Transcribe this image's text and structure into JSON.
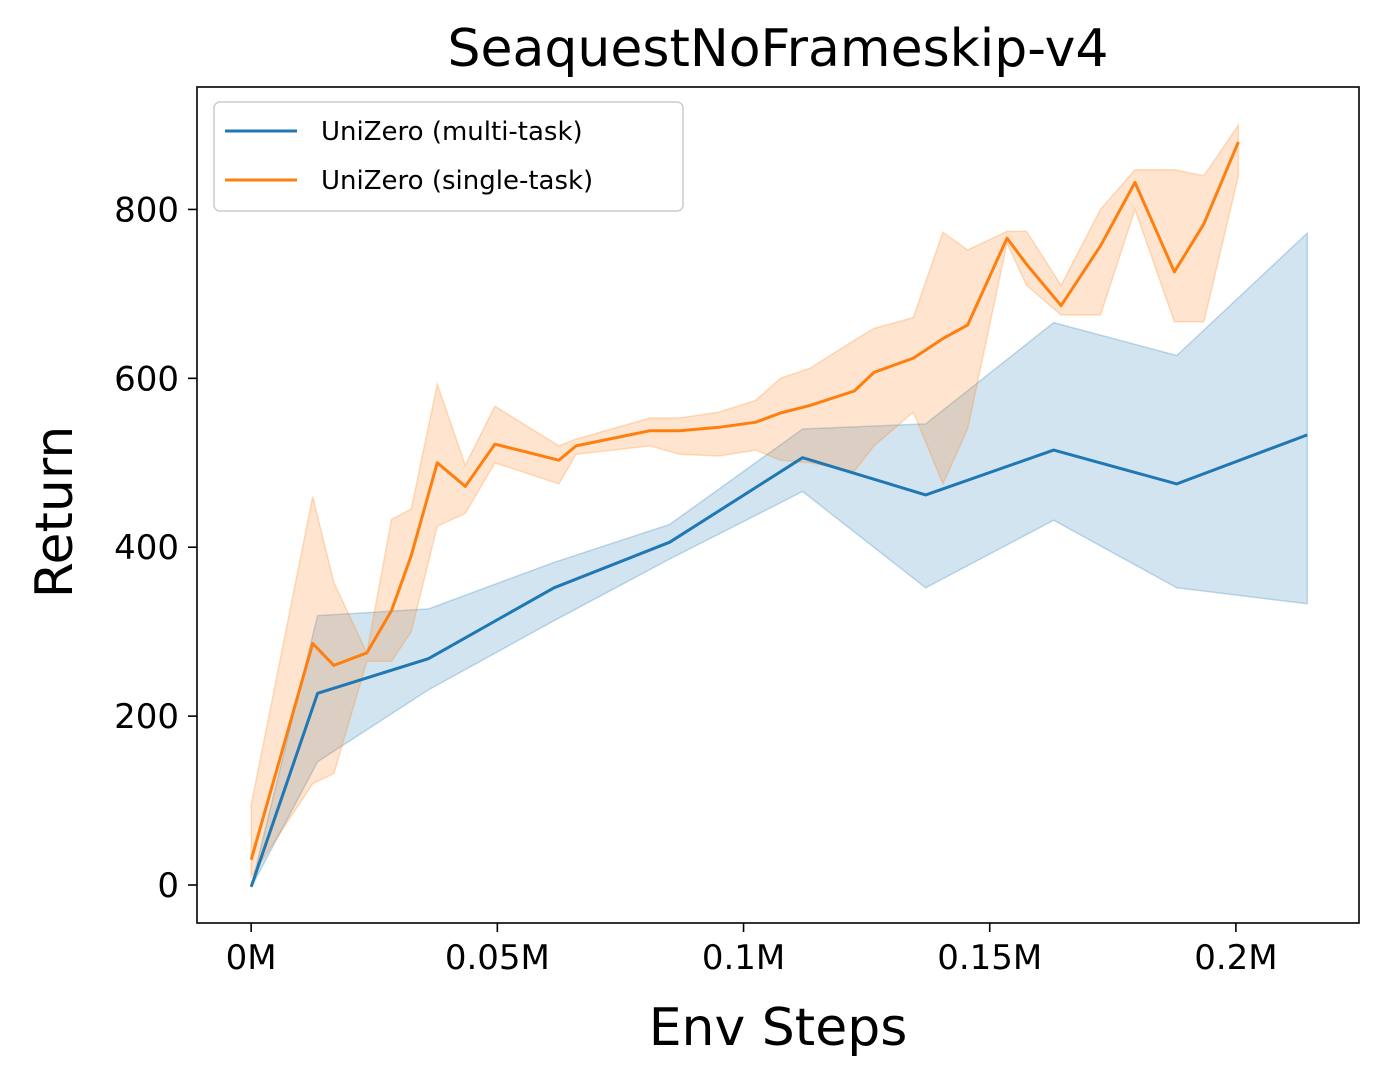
{
  "chart_data": {
    "type": "line",
    "title": "SeaquestNoFrameskip-v4",
    "xlabel": "Env Steps",
    "ylabel": "Return",
    "xlim": [
      -0.011,
      0.225
    ],
    "ylim": [
      -45,
      945
    ],
    "xticks": [
      0,
      0.05,
      0.1,
      0.15,
      0.2
    ],
    "xtick_labels": [
      "0M",
      "0.05M",
      "0.1M",
      "0.15M",
      "0.2M"
    ],
    "yticks": [
      0,
      200,
      400,
      600,
      800
    ],
    "ytick_labels": [
      "0",
      "200",
      "400",
      "600",
      "800"
    ],
    "grid": false,
    "legend_position": "upper-left",
    "series": [
      {
        "name": "UniZero (multi-task)",
        "color": "#1f77b4",
        "x": [
          0,
          0.0135,
          0.036,
          0.0615,
          0.085,
          0.112,
          0.137,
          0.163,
          0.188,
          0.2145
        ],
        "y": [
          -2,
          227,
          268,
          352,
          406,
          506,
          462,
          515,
          475,
          533
        ],
        "lower": [
          -3,
          146,
          231,
          313,
          386,
          466,
          352,
          432,
          352,
          333
        ],
        "upper": [
          -2,
          319,
          327,
          382,
          427,
          540,
          546,
          666,
          627,
          772
        ]
      },
      {
        "name": "UniZero (single-task)",
        "color": "#ff7f0e",
        "x": [
          0,
          0.0125,
          0.0168,
          0.0235,
          0.0285,
          0.0325,
          0.0378,
          0.0435,
          0.0495,
          0.0625,
          0.066,
          0.081,
          0.087,
          0.095,
          0.1025,
          0.1075,
          0.1135,
          0.1225,
          0.1265,
          0.1345,
          0.1405,
          0.1455,
          0.1535,
          0.1575,
          0.1645,
          0.1725,
          0.1795,
          0.1875,
          0.1935,
          0.2005
        ],
        "y": [
          30,
          286,
          260,
          275,
          325,
          390,
          500,
          472,
          522,
          503,
          520,
          538,
          538,
          542,
          548,
          559,
          568,
          585,
          607,
          624,
          647,
          663,
          766,
          735,
          686,
          757,
          832,
          726,
          783,
          880
        ],
        "lower": [
          10,
          120,
          132,
          265,
          265,
          300,
          425,
          440,
          500,
          475,
          510,
          520,
          510,
          508,
          515,
          503,
          500,
          490,
          520,
          560,
          475,
          540,
          760,
          710,
          675,
          675,
          800,
          667,
          667,
          840
        ],
        "upper": [
          95,
          460,
          358,
          275,
          433,
          445,
          593,
          497,
          567,
          520,
          528,
          553,
          553,
          560,
          574,
          600,
          612,
          645,
          659,
          672,
          773,
          752,
          774,
          774,
          710,
          800,
          847,
          847,
          840,
          900
        ]
      }
    ]
  }
}
